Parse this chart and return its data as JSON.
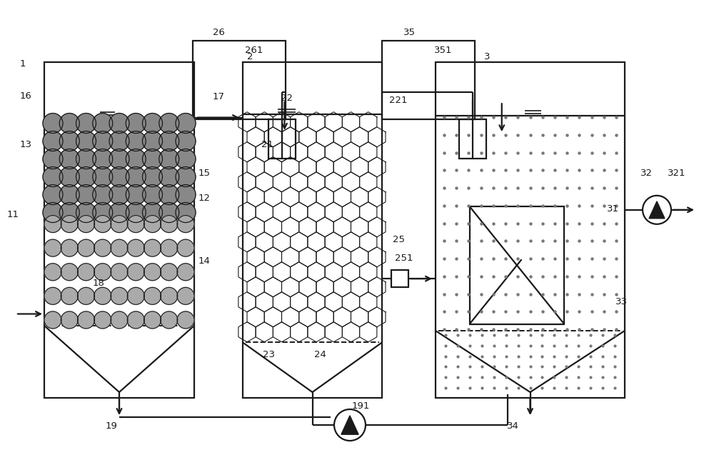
{
  "bg_color": "#ffffff",
  "lc": "#1a1a1a",
  "lw": 1.6,
  "figsize": [
    10.0,
    6.37
  ],
  "dpi": 100
}
